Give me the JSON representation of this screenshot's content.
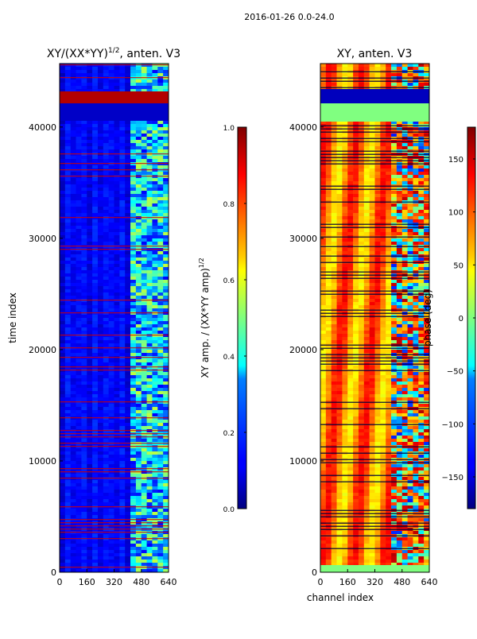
{
  "figure": {
    "suptitle": "2016-01-26 0.0-24.0"
  },
  "chart_data": [
    {
      "type": "heatmap",
      "title": "XY/(XX*YY)^1/2, anten. V3",
      "title_main": "XY/(XX*YY)",
      "title_sup": "1/2",
      "title_tail": ", anten. V3",
      "xlabel": "",
      "ylabel": "time index",
      "xlim": [
        0,
        640
      ],
      "ylim": [
        0,
        45700
      ],
      "x_ticks": [
        0,
        160,
        320,
        480,
        640
      ],
      "y_ticks": [
        0,
        10000,
        20000,
        30000,
        40000
      ],
      "colorbar": {
        "label": "XY amp. / (XX*YY amp)^1/2",
        "label_main": "XY amp. / (XX*YY amp)",
        "label_sup": "1/2",
        "range": [
          0.0,
          1.0
        ],
        "ticks": [
          0.0,
          0.2,
          0.4,
          0.6,
          0.8,
          1.0
        ],
        "tick_labels": [
          "0.0",
          "0.2",
          "0.4",
          "0.6",
          "0.8",
          "1.0"
        ],
        "colormap": "jet"
      }
    },
    {
      "type": "heatmap",
      "title": "XY, anten. V3",
      "xlabel": "channel index",
      "ylabel": "",
      "xlim": [
        0,
        640
      ],
      "ylim": [
        0,
        45700
      ],
      "x_ticks": [
        0,
        160,
        320,
        480,
        640
      ],
      "y_ticks": [
        0,
        10000,
        20000,
        30000,
        40000
      ],
      "colorbar": {
        "label": "phase (deg)",
        "range": [
          -180,
          180
        ],
        "ticks": [
          -150,
          -100,
          -50,
          0,
          50,
          100,
          150
        ],
        "tick_labels": [
          "−150",
          "−100",
          "−50",
          "0",
          "50",
          "100",
          "150"
        ],
        "colormap": "jet"
      }
    }
  ],
  "colors": {
    "jet_low": "#00007f",
    "jet_mid": "#7fff7f",
    "jet_high": "#7f0000",
    "axis": "#000000"
  }
}
